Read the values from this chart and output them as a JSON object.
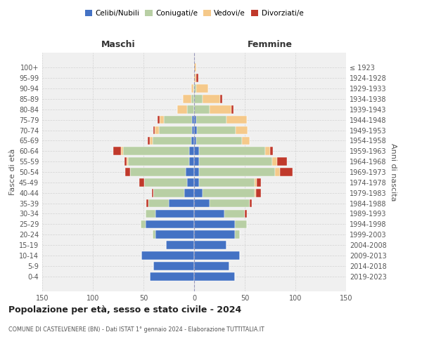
{
  "age_groups": [
    "0-4",
    "5-9",
    "10-14",
    "15-19",
    "20-24",
    "25-29",
    "30-34",
    "35-39",
    "40-44",
    "45-49",
    "50-54",
    "55-59",
    "60-64",
    "65-69",
    "70-74",
    "75-79",
    "80-84",
    "85-89",
    "90-94",
    "95-99",
    "100+"
  ],
  "birth_years": [
    "2019-2023",
    "2014-2018",
    "2009-2013",
    "2004-2008",
    "1999-2003",
    "1994-1998",
    "1989-1993",
    "1984-1988",
    "1979-1983",
    "1974-1978",
    "1969-1973",
    "1964-1968",
    "1959-1963",
    "1954-1958",
    "1949-1953",
    "1944-1948",
    "1939-1943",
    "1934-1938",
    "1929-1933",
    "1924-1928",
    "≤ 1923"
  ],
  "colors": {
    "celibi": "#4472c4",
    "coniugati": "#b8cfa4",
    "vedovi": "#f5c98a",
    "divorziati": "#c0392b"
  },
  "maschi": {
    "celibi": [
      44,
      40,
      52,
      28,
      38,
      48,
      38,
      25,
      10,
      7,
      8,
      5,
      5,
      3,
      2,
      2,
      0,
      0,
      0,
      0,
      0
    ],
    "coniugati": [
      0,
      0,
      0,
      0,
      3,
      5,
      10,
      20,
      30,
      42,
      55,
      60,
      65,
      38,
      33,
      28,
      7,
      3,
      1,
      0,
      0
    ],
    "vedovi": [
      0,
      0,
      0,
      0,
      0,
      0,
      0,
      0,
      0,
      0,
      0,
      2,
      2,
      3,
      4,
      4,
      10,
      8,
      2,
      1,
      0
    ],
    "divorziati": [
      0,
      0,
      0,
      0,
      0,
      0,
      0,
      2,
      2,
      5,
      5,
      2,
      8,
      2,
      1,
      2,
      0,
      0,
      0,
      0,
      0
    ]
  },
  "femmine": {
    "celibi": [
      40,
      35,
      45,
      32,
      40,
      40,
      30,
      15,
      8,
      5,
      5,
      5,
      5,
      2,
      3,
      2,
      0,
      0,
      0,
      0,
      0
    ],
    "coniugati": [
      0,
      0,
      0,
      0,
      5,
      12,
      20,
      40,
      52,
      55,
      75,
      72,
      65,
      45,
      38,
      30,
      15,
      8,
      2,
      0,
      0
    ],
    "vedovi": [
      0,
      0,
      0,
      0,
      0,
      0,
      0,
      0,
      1,
      2,
      5,
      5,
      5,
      8,
      12,
      20,
      22,
      18,
      12,
      2,
      2
    ],
    "divorziati": [
      0,
      0,
      0,
      0,
      0,
      0,
      2,
      2,
      5,
      4,
      12,
      10,
      3,
      0,
      0,
      0,
      2,
      2,
      0,
      2,
      0
    ]
  },
  "title": "Popolazione per età, sesso e stato civile - 2024",
  "subtitle": "COMUNE DI CASTELVENERE (BN) - Dati ISTAT 1° gennaio 2024 - Elaborazione TUTTITALIA.IT",
  "xlabel_left": "Maschi",
  "xlabel_right": "Femmine",
  "ylabel_left": "Fasce di età",
  "ylabel_right": "Anni di nascita",
  "xlim": 150,
  "bg_color": "#f0f0f0",
  "grid_color": "#cccccc"
}
